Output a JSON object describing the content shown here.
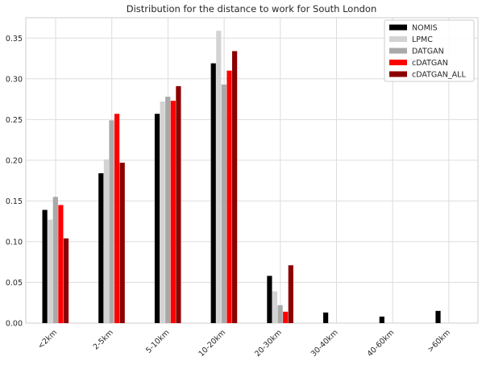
{
  "chart_data": {
    "type": "bar",
    "title": "Distribution for the distance to work for South London",
    "xlabel": "",
    "ylabel": "",
    "categories": [
      "<2km",
      "2-5km",
      "5-10km",
      "10-20km",
      "20-30km",
      "30-40km",
      "40-60km",
      ">60km"
    ],
    "ylim": [
      0,
      0.375
    ],
    "yticks": [
      "0.00",
      "0.05",
      "0.10",
      "0.15",
      "0.20",
      "0.25",
      "0.30",
      "0.35"
    ],
    "grid": true,
    "legend_position": "top-right",
    "series": [
      {
        "name": "NOMIS",
        "color": "#000000",
        "values": [
          0.139,
          0.184,
          0.257,
          0.319,
          0.058,
          0.013,
          0.008,
          0.015
        ]
      },
      {
        "name": "LPMC",
        "color": "#d3d3d3",
        "values": [
          0.127,
          0.201,
          0.272,
          0.359,
          0.039,
          0.0,
          0.0,
          0.0
        ]
      },
      {
        "name": "DATGAN",
        "color": "#a9a9a9",
        "values": [
          0.155,
          0.249,
          0.278,
          0.293,
          0.022,
          0.0,
          0.0,
          0.0
        ]
      },
      {
        "name": "cDATGAN",
        "color": "#ff0000",
        "values": [
          0.145,
          0.257,
          0.273,
          0.31,
          0.014,
          0.0,
          0.0,
          0.0
        ]
      },
      {
        "name": "cDATGAN_ALL",
        "color": "#8b0000",
        "values": [
          0.104,
          0.197,
          0.291,
          0.334,
          0.071,
          0.0,
          0.0,
          0.0
        ]
      }
    ]
  }
}
